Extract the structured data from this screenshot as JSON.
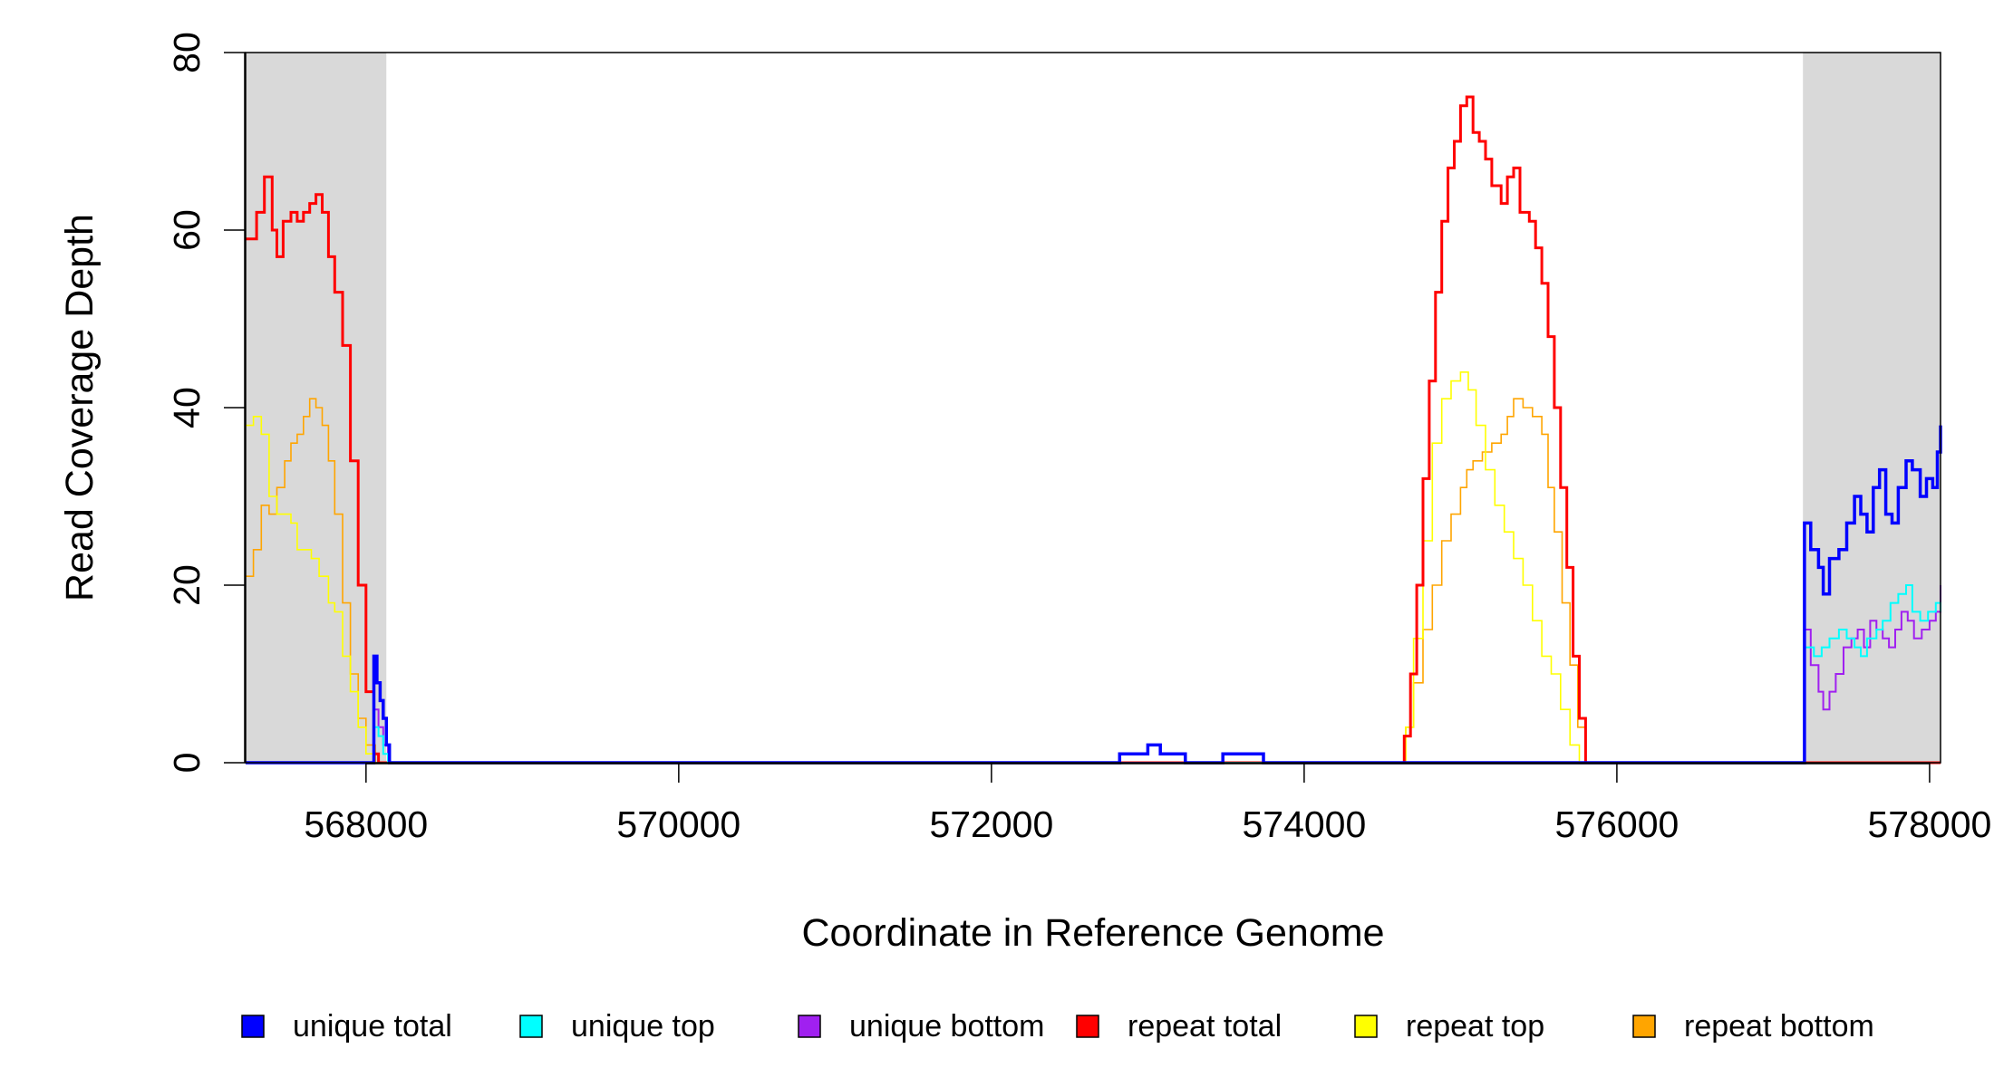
{
  "chart_data": {
    "type": "line",
    "xlabel": "Coordinate in Reference Genome",
    "ylabel": "Read Coverage Depth",
    "xlim": [
      567230,
      578070
    ],
    "ylim": [
      0,
      80
    ],
    "x_ticks": [
      568000,
      570000,
      572000,
      574000,
      576000,
      578000
    ],
    "y_ticks": [
      0,
      20,
      40,
      60,
      80
    ],
    "x_tick_labels": [
      "568000",
      "570000",
      "572000",
      "574000",
      "576000",
      "578000"
    ],
    "y_tick_labels": [
      "0",
      "20",
      "40",
      "60",
      "80"
    ],
    "shaded_regions": [
      {
        "x0": 567230,
        "x1": 568130,
        "color": "#d9d9d9"
      },
      {
        "x0": 577190,
        "x1": 578070,
        "color": "#d9d9d9"
      }
    ],
    "legend_position": "bottom",
    "series": [
      {
        "name": "repeat total",
        "color": "#ff0000",
        "points": [
          [
            567230,
            59
          ],
          [
            567300,
            62
          ],
          [
            567350,
            66
          ],
          [
            567400,
            60
          ],
          [
            567430,
            57
          ],
          [
            567470,
            61
          ],
          [
            567520,
            62
          ],
          [
            567560,
            61
          ],
          [
            567600,
            62
          ],
          [
            567640,
            63
          ],
          [
            567680,
            64
          ],
          [
            567720,
            62
          ],
          [
            567760,
            57
          ],
          [
            567800,
            53
          ],
          [
            567850,
            47
          ],
          [
            567900,
            34
          ],
          [
            567950,
            20
          ],
          [
            568000,
            8
          ],
          [
            568050,
            1
          ],
          [
            568080,
            0
          ],
          [
            574600,
            0
          ],
          [
            574640,
            3
          ],
          [
            574680,
            10
          ],
          [
            574720,
            20
          ],
          [
            574760,
            32
          ],
          [
            574800,
            43
          ],
          [
            574840,
            53
          ],
          [
            574880,
            61
          ],
          [
            574920,
            67
          ],
          [
            574960,
            70
          ],
          [
            575000,
            74
          ],
          [
            575040,
            75
          ],
          [
            575080,
            71
          ],
          [
            575120,
            70
          ],
          [
            575160,
            68
          ],
          [
            575200,
            65
          ],
          [
            575260,
            63
          ],
          [
            575300,
            66
          ],
          [
            575340,
            67
          ],
          [
            575380,
            62
          ],
          [
            575440,
            61
          ],
          [
            575480,
            58
          ],
          [
            575520,
            54
          ],
          [
            575560,
            48
          ],
          [
            575600,
            40
          ],
          [
            575640,
            31
          ],
          [
            575680,
            22
          ],
          [
            575720,
            12
          ],
          [
            575760,
            5
          ],
          [
            575800,
            0
          ],
          [
            578070,
            0
          ]
        ]
      },
      {
        "name": "repeat top",
        "color": "#ffff00",
        "points": [
          [
            567230,
            38
          ],
          [
            567280,
            39
          ],
          [
            567330,
            37
          ],
          [
            567380,
            30
          ],
          [
            567430,
            28
          ],
          [
            567480,
            28
          ],
          [
            567520,
            27
          ],
          [
            567560,
            24
          ],
          [
            567600,
            24
          ],
          [
            567650,
            23
          ],
          [
            567700,
            21
          ],
          [
            567760,
            18
          ],
          [
            567800,
            17
          ],
          [
            567850,
            12
          ],
          [
            567900,
            8
          ],
          [
            567950,
            4
          ],
          [
            568000,
            1
          ],
          [
            568050,
            0
          ],
          [
            574600,
            0
          ],
          [
            574650,
            4
          ],
          [
            574700,
            14
          ],
          [
            574760,
            25
          ],
          [
            574820,
            36
          ],
          [
            574880,
            41
          ],
          [
            574940,
            43
          ],
          [
            575000,
            44
          ],
          [
            575050,
            42
          ],
          [
            575100,
            38
          ],
          [
            575160,
            33
          ],
          [
            575220,
            29
          ],
          [
            575280,
            26
          ],
          [
            575340,
            23
          ],
          [
            575400,
            20
          ],
          [
            575460,
            16
          ],
          [
            575520,
            12
          ],
          [
            575580,
            10
          ],
          [
            575640,
            6
          ],
          [
            575700,
            2
          ],
          [
            575760,
            0
          ],
          [
            578070,
            0
          ]
        ]
      },
      {
        "name": "repeat bottom",
        "color": "#ffa500",
        "points": [
          [
            567230,
            21
          ],
          [
            567280,
            24
          ],
          [
            567330,
            29
          ],
          [
            567380,
            28
          ],
          [
            567430,
            31
          ],
          [
            567480,
            34
          ],
          [
            567520,
            36
          ],
          [
            567560,
            37
          ],
          [
            567600,
            39
          ],
          [
            567640,
            41
          ],
          [
            567680,
            40
          ],
          [
            567720,
            38
          ],
          [
            567760,
            34
          ],
          [
            567800,
            28
          ],
          [
            567850,
            18
          ],
          [
            567900,
            10
          ],
          [
            567950,
            5
          ],
          [
            568000,
            2
          ],
          [
            568060,
            0
          ],
          [
            574600,
            0
          ],
          [
            574650,
            4
          ],
          [
            574700,
            9
          ],
          [
            574760,
            15
          ],
          [
            574820,
            20
          ],
          [
            574880,
            25
          ],
          [
            574940,
            28
          ],
          [
            575000,
            31
          ],
          [
            575040,
            33
          ],
          [
            575080,
            34
          ],
          [
            575140,
            35
          ],
          [
            575200,
            36
          ],
          [
            575260,
            37
          ],
          [
            575300,
            39
          ],
          [
            575340,
            41
          ],
          [
            575400,
            40
          ],
          [
            575460,
            39
          ],
          [
            575520,
            37
          ],
          [
            575560,
            31
          ],
          [
            575600,
            26
          ],
          [
            575650,
            18
          ],
          [
            575700,
            11
          ],
          [
            575750,
            4
          ],
          [
            575800,
            0
          ],
          [
            578070,
            0
          ]
        ]
      },
      {
        "name": "unique total",
        "color": "#0000ff",
        "points": [
          [
            567230,
            0
          ],
          [
            568030,
            0
          ],
          [
            568050,
            12
          ],
          [
            568070,
            9
          ],
          [
            568090,
            7
          ],
          [
            568110,
            5
          ],
          [
            568130,
            2
          ],
          [
            568150,
            0
          ],
          [
            572800,
            0
          ],
          [
            572820,
            1
          ],
          [
            572980,
            1
          ],
          [
            573000,
            2
          ],
          [
            573060,
            2
          ],
          [
            573080,
            1
          ],
          [
            573220,
            1
          ],
          [
            573240,
            0
          ],
          [
            573460,
            0
          ],
          [
            573480,
            1
          ],
          [
            573720,
            1
          ],
          [
            573740,
            0
          ],
          [
            577190,
            0
          ],
          [
            577200,
            27
          ],
          [
            577240,
            24
          ],
          [
            577290,
            22
          ],
          [
            577320,
            19
          ],
          [
            577360,
            23
          ],
          [
            577420,
            24
          ],
          [
            577470,
            27
          ],
          [
            577520,
            30
          ],
          [
            577560,
            28
          ],
          [
            577600,
            26
          ],
          [
            577640,
            31
          ],
          [
            577680,
            33
          ],
          [
            577720,
            28
          ],
          [
            577760,
            27
          ],
          [
            577800,
            31
          ],
          [
            577850,
            34
          ],
          [
            577890,
            33
          ],
          [
            577940,
            30
          ],
          [
            577980,
            32
          ],
          [
            578020,
            31
          ],
          [
            578050,
            35
          ],
          [
            578070,
            38
          ]
        ]
      },
      {
        "name": "unique top",
        "color": "#00ffff",
        "points": [
          [
            567230,
            0
          ],
          [
            568030,
            0
          ],
          [
            568050,
            4
          ],
          [
            568080,
            3
          ],
          [
            568110,
            1
          ],
          [
            568140,
            0
          ],
          [
            572800,
            0
          ],
          [
            572820,
            1
          ],
          [
            572980,
            1
          ],
          [
            573000,
            2
          ],
          [
            573060,
            2
          ],
          [
            573080,
            1
          ],
          [
            573220,
            1
          ],
          [
            573240,
            0
          ],
          [
            577190,
            0
          ],
          [
            577200,
            13
          ],
          [
            577260,
            12
          ],
          [
            577310,
            13
          ],
          [
            577360,
            14
          ],
          [
            577420,
            15
          ],
          [
            577470,
            14
          ],
          [
            577520,
            13
          ],
          [
            577560,
            12
          ],
          [
            577600,
            14
          ],
          [
            577660,
            15
          ],
          [
            577700,
            16
          ],
          [
            577750,
            18
          ],
          [
            577800,
            19
          ],
          [
            577850,
            20
          ],
          [
            577890,
            17
          ],
          [
            577940,
            16
          ],
          [
            577990,
            17
          ],
          [
            578040,
            18
          ],
          [
            578070,
            17
          ]
        ]
      },
      {
        "name": "unique bottom",
        "color": "#a020f0",
        "points": [
          [
            567230,
            0
          ],
          [
            568030,
            0
          ],
          [
            568050,
            6
          ],
          [
            568080,
            4
          ],
          [
            568110,
            2
          ],
          [
            568140,
            0
          ],
          [
            573460,
            0
          ],
          [
            573480,
            1
          ],
          [
            573720,
            1
          ],
          [
            573740,
            0
          ],
          [
            577190,
            0
          ],
          [
            577200,
            15
          ],
          [
            577240,
            11
          ],
          [
            577290,
            8
          ],
          [
            577320,
            6
          ],
          [
            577360,
            8
          ],
          [
            577400,
            10
          ],
          [
            577450,
            13
          ],
          [
            577500,
            14
          ],
          [
            577540,
            15
          ],
          [
            577580,
            13
          ],
          [
            577620,
            16
          ],
          [
            577660,
            15
          ],
          [
            577700,
            14
          ],
          [
            577740,
            13
          ],
          [
            577780,
            15
          ],
          [
            577820,
            17
          ],
          [
            577860,
            16
          ],
          [
            577900,
            14
          ],
          [
            577950,
            15
          ],
          [
            578000,
            16
          ],
          [
            578040,
            17
          ],
          [
            578070,
            20
          ]
        ]
      }
    ]
  }
}
